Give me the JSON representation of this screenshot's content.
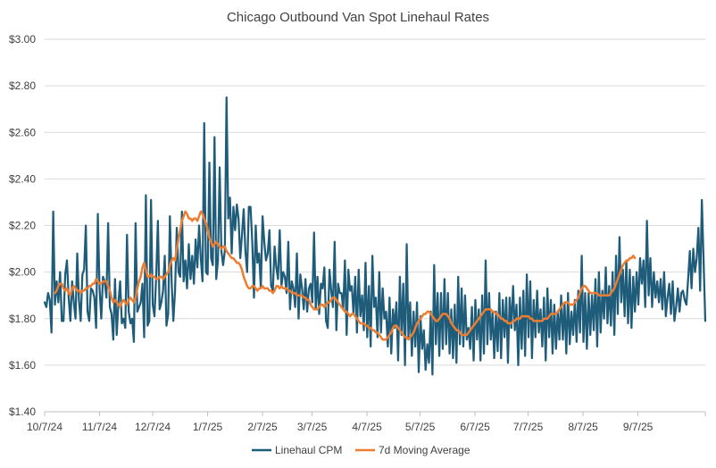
{
  "chart_data": {
    "type": "line",
    "title": "Chicago Outbound Van Spot Linehaul Rates",
    "xlabel": "",
    "ylabel": "",
    "x_start": "2024-10-07",
    "x_end": "2025-10-15",
    "x_ticks": [
      "10/7/24",
      "11/7/24",
      "12/7/24",
      "1/7/25",
      "2/7/25",
      "3/7/25",
      "4/7/25",
      "5/7/25",
      "6/7/25",
      "7/7/25",
      "8/7/25",
      "9/7/25"
    ],
    "x_tick_dates": [
      "2024-10-07",
      "2024-11-07",
      "2024-12-07",
      "2025-01-07",
      "2025-02-07",
      "2025-03-07",
      "2025-04-07",
      "2025-05-07",
      "2025-06-07",
      "2025-07-07",
      "2025-08-07",
      "2025-09-07"
    ],
    "y_ticks": [
      "$1.40",
      "$1.60",
      "$1.80",
      "$2.00",
      "$2.20",
      "$2.40",
      "$2.60",
      "$2.80",
      "$3.00"
    ],
    "ylim": [
      1.4,
      3.0
    ],
    "grid": "horizontal",
    "legend_position": "bottom",
    "series": [
      {
        "name": "Linehaul CPM",
        "color": "#1F5C7A",
        "sampling": "daily",
        "values": [
          1.87,
          1.85,
          1.91,
          1.88,
          1.74,
          2.26,
          1.86,
          1.96,
          1.87,
          2.0,
          1.79,
          1.79,
          1.99,
          2.05,
          1.89,
          1.79,
          1.96,
          1.87,
          1.8,
          2.08,
          1.88,
          1.79,
          1.99,
          2.01,
          2.2,
          1.83,
          1.79,
          1.93,
          1.92,
          1.89,
          1.76,
          2.25,
          1.93,
          1.8,
          1.98,
          1.96,
          1.89,
          2.21,
          1.85,
          1.82,
          1.71,
          1.97,
          1.73,
          1.87,
          1.96,
          1.78,
          1.8,
          1.76,
          2.16,
          1.83,
          1.78,
          1.8,
          1.7,
          2.21,
          1.83,
          1.85,
          1.87,
          1.95,
          1.72,
          2.33,
          1.77,
          1.79,
          2.31,
          1.86,
          1.81,
          1.98,
          2.22,
          1.84,
          1.87,
          1.92,
          2.07,
          1.77,
          1.82,
          2.24,
          1.96,
          1.79,
          1.92,
          2.19,
          2.0,
          1.98,
          2.26,
          1.96,
          2.05,
          1.93,
          2.12,
          1.97,
          2.07,
          1.95,
          2.14,
          2.02,
          2.2,
          2.06,
          1.96,
          2.64,
          2.0,
          1.99,
          2.47,
          2.06,
          2.03,
          2.58,
          1.97,
          2.05,
          2.45,
          2.09,
          2.03,
          2.09,
          2.75,
          2.23,
          2.32,
          2.08,
          2.28,
          2.18,
          2.29,
          2.23,
          2.06,
          2.16,
          2.27,
          2.09,
          2.0,
          2.28,
          2.28,
          2.13,
          1.89,
          2.2,
          2.04,
          2.08,
          1.93,
          2.24,
          2.13,
          2.05,
          2.08,
          2.18,
          1.94,
          1.92,
          2.11,
          2.02,
          1.97,
          2.18,
          1.94,
          2.0,
          1.98,
          1.91,
          2.13,
          1.84,
          1.96,
          1.93,
          1.85,
          2.08,
          1.8,
          1.99,
          1.93,
          1.84,
          1.97,
          1.83,
          1.93,
          1.95,
          1.87,
          2.17,
          1.84,
          1.98,
          1.82,
          1.95,
          1.93,
          2.02,
          1.79,
          1.76,
          2.01,
          1.92,
          1.85,
          2.13,
          1.75,
          1.95,
          1.91,
          1.91,
          1.84,
          2.05,
          1.73,
          2.01,
          1.92,
          1.94,
          1.82,
          1.98,
          1.74,
          2.01,
          1.81,
          1.9,
          1.75,
          2.04,
          1.72,
          1.94,
          1.68,
          2.07,
          1.85,
          1.89,
          1.72,
          2.0,
          1.74,
          1.93,
          1.8,
          1.83,
          1.68,
          1.89,
          1.65,
          1.84,
          1.76,
          1.87,
          1.62,
          1.98,
          1.73,
          1.95,
          1.6,
          2.12,
          1.72,
          1.87,
          1.64,
          1.83,
          1.68,
          1.87,
          1.57,
          1.81,
          1.67,
          1.75,
          1.58,
          1.69,
          1.61,
          1.83,
          1.56,
          2.03,
          1.69,
          1.91,
          1.64,
          1.91,
          1.67,
          1.97,
          1.69,
          1.91,
          1.65,
          1.84,
          1.63,
          1.86,
          1.61,
          1.98,
          1.69,
          1.93,
          1.68,
          1.9,
          1.71,
          1.76,
          1.67,
          1.85,
          1.62,
          1.88,
          1.71,
          1.84,
          1.62,
          1.9,
          1.65,
          2.05,
          1.69,
          1.91,
          1.71,
          1.83,
          1.63,
          1.83,
          1.66,
          1.91,
          1.63,
          1.88,
          1.72,
          1.89,
          1.61,
          1.89,
          1.76,
          1.94,
          1.75,
          1.86,
          1.6,
          1.89,
          1.67,
          1.92,
          1.64,
          1.99,
          1.72,
          1.96,
          1.63,
          1.88,
          1.72,
          1.92,
          1.74,
          1.84,
          1.68,
          1.89,
          1.62,
          1.93,
          1.72,
          1.88,
          1.65,
          1.86,
          1.67,
          1.83,
          1.71,
          1.9,
          1.71,
          1.87,
          1.65,
          1.91,
          1.69,
          1.83,
          1.73,
          1.88,
          1.7,
          1.92,
          1.74,
          2.07,
          1.7,
          1.91,
          1.67,
          1.91,
          1.73,
          1.9,
          1.75,
          1.97,
          1.68,
          2.0,
          1.74,
          1.92,
          1.8,
          2.02,
          1.78,
          1.94,
          1.77,
          2.0,
          1.73,
          2.07,
          1.82,
          2.15,
          1.87,
          2.01,
          1.81,
          2.05,
          1.78,
          2.01,
          1.76,
          1.98,
          1.83,
          2.0,
          1.86,
          2.06,
          1.95,
          2.05,
          1.85,
          2.22,
          1.9,
          2.06,
          1.85,
          2.0,
          1.89,
          1.96,
          1.87,
          1.97,
          1.84,
          2.0,
          1.81,
          1.89,
          1.95,
          1.82,
          1.96,
          1.79,
          1.85,
          1.93,
          1.83,
          1.91,
          1.92,
          1.88,
          1.86,
          1.97,
          2.09,
          1.93,
          2.1,
          2.0,
          2.06,
          2.19,
          1.92,
          2.31,
          2.05,
          1.79
        ]
      },
      {
        "name": "7d Moving Average",
        "color": "#ED7D31",
        "sampling": "daily",
        "start_index": 6,
        "values": [
          1.91,
          1.92,
          1.94,
          1.95,
          1.95,
          1.93,
          1.92,
          1.93,
          1.91,
          1.9,
          1.93,
          1.94,
          1.93,
          1.92,
          1.92,
          1.91,
          1.92,
          1.92,
          1.93,
          1.93,
          1.94,
          1.94,
          1.95,
          1.95,
          1.97,
          1.96,
          1.95,
          1.95,
          1.96,
          1.96,
          1.96,
          1.94,
          1.92,
          1.89,
          1.87,
          1.88,
          1.87,
          1.86,
          1.85,
          1.87,
          1.88,
          1.87,
          1.86,
          1.88,
          1.89,
          1.88,
          1.87,
          1.89,
          1.93,
          1.96,
          1.98,
          2.02,
          2.04,
          2.01,
          1.98,
          1.98,
          1.99,
          1.98,
          1.98,
          1.97,
          1.97,
          1.98,
          1.98,
          1.97,
          1.98,
          1.99,
          2.0,
          2.03,
          2.05,
          2.06,
          2.05,
          2.1,
          2.14,
          2.18,
          2.22,
          2.24,
          2.26,
          2.25,
          2.23,
          2.23,
          2.22,
          2.23,
          2.23,
          2.22,
          2.24,
          2.26,
          2.25,
          2.23,
          2.21,
          2.18,
          2.15,
          2.13,
          2.11,
          2.12,
          2.13,
          2.12,
          2.11,
          2.1,
          2.11,
          2.11,
          2.09,
          2.08,
          2.07,
          2.06,
          2.06,
          2.05,
          2.04,
          2.04,
          2.03,
          2.01,
          1.98,
          1.96,
          1.94,
          1.93,
          1.93,
          1.94,
          1.94,
          1.93,
          1.92,
          1.93,
          1.93,
          1.94,
          1.93,
          1.93,
          1.93,
          1.92,
          1.92,
          1.91,
          1.92,
          1.94,
          1.94,
          1.93,
          1.94,
          1.93,
          1.93,
          1.93,
          1.92,
          1.92,
          1.91,
          1.91,
          1.91,
          1.9,
          1.9,
          1.9,
          1.9,
          1.89,
          1.89,
          1.88,
          1.88,
          1.86,
          1.85,
          1.84,
          1.84,
          1.84,
          1.85,
          1.86,
          1.86,
          1.85,
          1.86,
          1.87,
          1.87,
          1.88,
          1.89,
          1.89,
          1.88,
          1.87,
          1.86,
          1.85,
          1.84,
          1.83,
          1.83,
          1.82,
          1.81,
          1.82,
          1.82,
          1.81,
          1.8,
          1.79,
          1.78,
          1.78,
          1.78,
          1.77,
          1.77,
          1.76,
          1.76,
          1.75,
          1.75,
          1.74,
          1.74,
          1.73,
          1.72,
          1.71,
          1.71,
          1.71,
          1.72,
          1.73,
          1.74,
          1.76,
          1.77,
          1.77,
          1.76,
          1.75,
          1.74,
          1.73,
          1.72,
          1.72,
          1.71,
          1.72,
          1.73,
          1.74,
          1.76,
          1.78,
          1.79,
          1.8,
          1.81,
          1.82,
          1.82,
          1.83,
          1.83,
          1.82,
          1.81,
          1.8,
          1.79,
          1.79,
          1.8,
          1.81,
          1.82,
          1.82,
          1.82,
          1.81,
          1.8,
          1.78,
          1.77,
          1.76,
          1.75,
          1.75,
          1.74,
          1.73,
          1.73,
          1.73,
          1.73,
          1.74,
          1.75,
          1.76,
          1.77,
          1.78,
          1.79,
          1.8,
          1.81,
          1.82,
          1.83,
          1.84,
          1.84,
          1.84,
          1.84,
          1.83,
          1.83,
          1.82,
          1.82,
          1.81,
          1.8,
          1.8,
          1.79,
          1.79,
          1.78,
          1.78,
          1.78,
          1.79,
          1.79,
          1.8,
          1.8,
          1.8,
          1.81,
          1.81,
          1.81,
          1.81,
          1.81,
          1.8,
          1.8,
          1.79,
          1.79,
          1.79,
          1.79,
          1.79,
          1.79,
          1.8,
          1.8,
          1.8,
          1.81,
          1.82,
          1.82,
          1.82,
          1.82,
          1.83,
          1.84,
          1.85,
          1.86,
          1.87,
          1.87,
          1.87,
          1.86,
          1.86,
          1.86,
          1.87,
          1.88,
          1.89,
          1.91,
          1.93,
          1.94,
          1.94,
          1.93,
          1.92,
          1.91,
          1.91,
          1.91,
          1.91,
          1.91,
          1.9,
          1.9,
          1.9,
          1.9,
          1.9,
          1.9,
          1.9,
          1.91,
          1.92,
          1.93,
          1.95,
          1.97,
          1.99,
          2.01,
          2.03,
          2.04,
          2.05,
          2.05,
          2.06,
          2.06,
          2.07,
          2.06
        ]
      }
    ]
  }
}
